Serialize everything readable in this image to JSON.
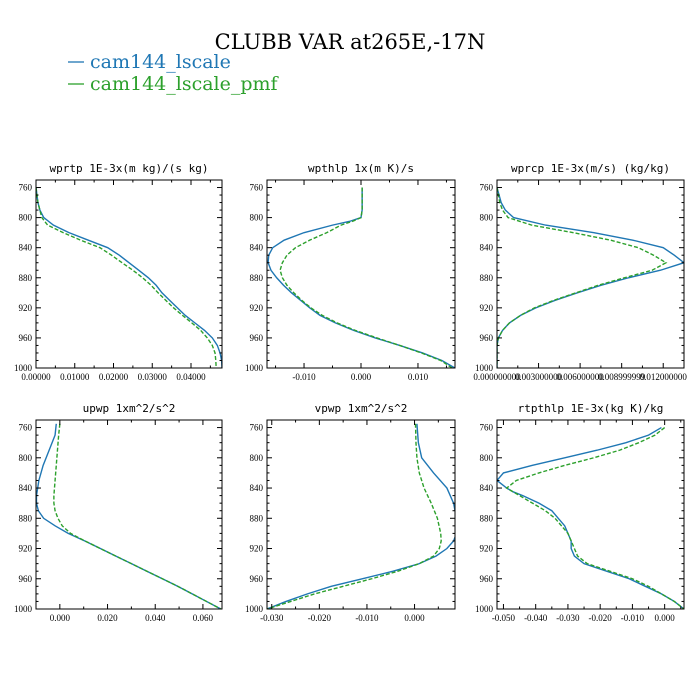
{
  "title": "CLUBB VAR at265E,-17N",
  "legend": [
    {
      "label": "cam144_lscale",
      "color": "#1f77b4",
      "dash": false
    },
    {
      "label": "cam144_lscale_pmf",
      "color": "#2ca02c",
      "dash": true
    }
  ],
  "chart_data": [
    {
      "type": "line",
      "title": "wprtp  1E-3x(m kg)/(s kg)",
      "xlim": [
        0.0,
        0.048
      ],
      "ylim": [
        1000,
        750
      ],
      "xticks": [
        "0.00000",
        "0.01000",
        "0.02000",
        "0.03000",
        "0.04000"
      ],
      "xtick_values": [
        0.0,
        0.01,
        0.02,
        0.03,
        0.04
      ],
      "yticks": [
        760,
        800,
        840,
        880,
        920,
        960,
        1000
      ],
      "series": [
        {
          "name": "cam144_lscale",
          "y": [
            760,
            780,
            790,
            800,
            810,
            820,
            830,
            840,
            850,
            860,
            870,
            880,
            890,
            900,
            910,
            920,
            930,
            940,
            950,
            960,
            970,
            980,
            990,
            1000
          ],
          "x": [
            0.0,
            0.0005,
            0.001,
            0.002,
            0.0045,
            0.0085,
            0.0135,
            0.0185,
            0.0215,
            0.024,
            0.0265,
            0.029,
            0.031,
            0.0325,
            0.0345,
            0.0365,
            0.0385,
            0.041,
            0.0435,
            0.0455,
            0.0468,
            0.0475,
            0.0479,
            0.048
          ]
        },
        {
          "name": "cam144_lscale_pmf",
          "y": [
            760,
            780,
            790,
            800,
            810,
            820,
            830,
            840,
            850,
            860,
            870,
            880,
            890,
            900,
            910,
            920,
            930,
            940,
            950,
            960,
            970,
            980,
            990,
            1000
          ],
          "x": [
            0.0,
            0.0005,
            0.001,
            0.0015,
            0.003,
            0.007,
            0.0115,
            0.0165,
            0.0195,
            0.0222,
            0.025,
            0.0275,
            0.0297,
            0.0315,
            0.0335,
            0.0355,
            0.0378,
            0.0402,
            0.0425,
            0.0442,
            0.0455,
            0.0462,
            0.0464,
            0.0465
          ]
        }
      ]
    },
    {
      "type": "line",
      "title": "wpthlp  1x(m K)/s",
      "xlim": [
        -0.0165,
        0.0165
      ],
      "ylim": [
        1000,
        750
      ],
      "xticks": [
        "-0.010",
        "0.000",
        "0.010"
      ],
      "xtick_values": [
        -0.01,
        0.0,
        0.01
      ],
      "yticks": [
        760,
        800,
        840,
        880,
        920,
        960,
        1000
      ],
      "series": [
        {
          "name": "cam144_lscale",
          "y": [
            760,
            780,
            790,
            800,
            805,
            810,
            820,
            830,
            840,
            850,
            860,
            870,
            880,
            890,
            900,
            910,
            920,
            930,
            940,
            950,
            960,
            970,
            980,
            990,
            1000
          ],
          "x": [
            0.0002,
            0.0002,
            0.0002,
            0.0,
            -0.002,
            -0.005,
            -0.01,
            -0.0135,
            -0.0155,
            -0.0162,
            -0.0163,
            -0.0158,
            -0.0148,
            -0.0136,
            -0.0122,
            -0.0106,
            -0.009,
            -0.0072,
            -0.0045,
            -0.0013,
            0.0025,
            0.0068,
            0.0108,
            0.0142,
            0.0165
          ]
        },
        {
          "name": "cam144_lscale_pmf",
          "y": [
            760,
            780,
            790,
            800,
            805,
            810,
            820,
            830,
            840,
            850,
            860,
            870,
            880,
            890,
            900,
            910,
            920,
            930,
            940,
            950,
            960,
            970,
            980,
            990,
            1000
          ],
          "x": [
            0.0002,
            0.0002,
            0.0002,
            0.0,
            -0.0015,
            -0.0035,
            -0.006,
            -0.009,
            -0.0115,
            -0.013,
            -0.0138,
            -0.0142,
            -0.0138,
            -0.013,
            -0.0118,
            -0.0104,
            -0.0088,
            -0.0068,
            -0.0042,
            -0.001,
            0.0028,
            0.0068,
            0.0106,
            0.014,
            0.016
          ]
        }
      ]
    },
    {
      "type": "line",
      "title": "wprcp  1E-3x(m/s) (kg/kg)",
      "xlim": [
        0.0,
        0.0135
      ],
      "ylim": [
        1000,
        750
      ],
      "xticks": [
        "0.000000000",
        "0.003000000",
        "0.006000000",
        "0.008999999",
        "0.012000000"
      ],
      "xtick_values": [
        0.0,
        0.003,
        0.006,
        0.009,
        0.012
      ],
      "yticks": [
        760,
        800,
        840,
        880,
        920,
        960,
        1000
      ],
      "series": [
        {
          "name": "cam144_lscale",
          "y": [
            760,
            780,
            790,
            800,
            810,
            820,
            830,
            840,
            850,
            860,
            870,
            880,
            890,
            900,
            910,
            920,
            930,
            940,
            950,
            960,
            970,
            980,
            990,
            1000
          ],
          "x": [
            0.0,
            0.0003,
            0.0006,
            0.0012,
            0.0035,
            0.007,
            0.0098,
            0.012,
            0.0128,
            0.0135,
            0.0118,
            0.0095,
            0.0075,
            0.0058,
            0.0042,
            0.0028,
            0.0017,
            0.0009,
            0.0004,
            0.0001,
            0.0,
            0.0,
            0.0,
            0.0
          ]
        },
        {
          "name": "cam144_lscale_pmf",
          "y": [
            760,
            780,
            790,
            800,
            810,
            820,
            830,
            840,
            850,
            860,
            870,
            880,
            890,
            900,
            910,
            920,
            930,
            940,
            950,
            960,
            970,
            980,
            990,
            1000
          ],
          "x": [
            0.0,
            0.0002,
            0.0004,
            0.0008,
            0.0025,
            0.0055,
            0.0082,
            0.0102,
            0.0113,
            0.0122,
            0.0112,
            0.0092,
            0.0073,
            0.0057,
            0.0041,
            0.0027,
            0.0017,
            0.0009,
            0.0004,
            0.0001,
            0.0,
            0.0,
            0.0,
            0.0
          ]
        }
      ]
    },
    {
      "type": "line",
      "title": "upwp  1xm^2/s^2",
      "xlim": [
        -0.01,
        0.068
      ],
      "ylim": [
        1000,
        750
      ],
      "xticks": [
        "0.000",
        "0.020",
        "0.040",
        "0.060"
      ],
      "xtick_values": [
        0.0,
        0.02,
        0.04,
        0.06
      ],
      "yticks": [
        760,
        800,
        840,
        880,
        920,
        960,
        1000
      ],
      "series": [
        {
          "name": "cam144_lscale",
          "y": [
            755,
            770,
            790,
            810,
            830,
            850,
            860,
            870,
            880,
            890,
            900,
            910,
            920,
            930,
            940,
            950,
            960,
            970,
            980,
            990,
            1000
          ],
          "x": [
            -0.0015,
            -0.002,
            -0.0045,
            -0.007,
            -0.0088,
            -0.0098,
            -0.0098,
            -0.009,
            -0.0068,
            -0.002,
            0.0035,
            0.0105,
            0.017,
            0.0235,
            0.03,
            0.0365,
            0.043,
            0.0495,
            0.0555,
            0.0615,
            0.0675
          ]
        },
        {
          "name": "cam144_lscale_pmf",
          "y": [
            755,
            770,
            790,
            810,
            830,
            850,
            860,
            870,
            880,
            890,
            900,
            910,
            920,
            930,
            940,
            950,
            960,
            970,
            980,
            990,
            1000
          ],
          "x": [
            0.0,
            -0.0005,
            -0.001,
            -0.0015,
            -0.002,
            -0.0025,
            -0.0025,
            -0.002,
            -0.0008,
            0.001,
            0.0045,
            0.0105,
            0.017,
            0.0235,
            0.03,
            0.0365,
            0.043,
            0.0495,
            0.0555,
            0.0615,
            0.0675
          ]
        }
      ]
    },
    {
      "type": "line",
      "title": "vpwp  1xm^2/s^2",
      "xlim": [
        -0.031,
        0.0085
      ],
      "ylim": [
        1000,
        750
      ],
      "xticks": [
        "-0.030",
        "-0.020",
        "-0.010",
        "0.000"
      ],
      "xtick_values": [
        -0.03,
        -0.02,
        -0.01,
        0.0
      ],
      "yticks": [
        760,
        800,
        840,
        880,
        920,
        960,
        1000
      ],
      "series": [
        {
          "name": "cam144_lscale",
          "y": [
            755,
            780,
            800,
            820,
            840,
            860,
            880,
            900,
            910,
            920,
            930,
            940,
            950,
            960,
            970,
            980,
            990,
            1000
          ],
          "x": [
            0.0005,
            0.0008,
            0.0015,
            0.004,
            0.0068,
            0.0082,
            0.0088,
            0.0088,
            0.0082,
            0.0068,
            0.0045,
            0.001,
            -0.0045,
            -0.011,
            -0.0175,
            -0.0225,
            -0.027,
            -0.031
          ]
        },
        {
          "name": "cam144_lscale_pmf",
          "y": [
            755,
            780,
            800,
            820,
            840,
            860,
            880,
            900,
            910,
            920,
            930,
            940,
            950,
            960,
            970,
            980,
            990,
            1000
          ],
          "x": [
            0.0002,
            0.0003,
            0.0005,
            0.001,
            0.002,
            0.0035,
            0.0048,
            0.0055,
            0.0056,
            0.0052,
            0.004,
            0.001,
            -0.0035,
            -0.009,
            -0.015,
            -0.021,
            -0.026,
            -0.031
          ]
        }
      ]
    },
    {
      "type": "line",
      "title": "rtpthlp  1E-3x(kg K)/kg",
      "xlim": [
        -0.052,
        0.006
      ],
      "ylim": [
        1000,
        750
      ],
      "xticks": [
        "-0.050",
        "-0.040",
        "-0.030",
        "-0.020",
        "-0.010",
        "0.000"
      ],
      "xtick_values": [
        -0.05,
        -0.04,
        -0.03,
        -0.02,
        -0.01,
        0.0
      ],
      "yticks": [
        760,
        800,
        840,
        880,
        920,
        960,
        1000
      ],
      "series": [
        {
          "name": "cam144_lscale",
          "y": [
            760,
            770,
            780,
            790,
            800,
            810,
            820,
            830,
            840,
            845,
            850,
            860,
            870,
            880,
            890,
            900,
            910,
            920,
            930,
            940,
            950,
            960,
            970,
            980,
            990,
            1000
          ],
          "x": [
            -0.001,
            -0.005,
            -0.012,
            -0.021,
            -0.031,
            -0.041,
            -0.05,
            -0.052,
            -0.049,
            -0.047,
            -0.044,
            -0.039,
            -0.035,
            -0.033,
            -0.031,
            -0.03,
            -0.029,
            -0.029,
            -0.028,
            -0.025,
            -0.018,
            -0.011,
            -0.006,
            -0.001,
            0.003,
            0.006
          ]
        },
        {
          "name": "cam144_lscale_pmf",
          "y": [
            760,
            770,
            780,
            790,
            800,
            810,
            820,
            830,
            840,
            845,
            850,
            860,
            870,
            880,
            890,
            900,
            910,
            920,
            930,
            940,
            950,
            960,
            970,
            980,
            990,
            1000
          ],
          "x": [
            0.0,
            -0.003,
            -0.008,
            -0.014,
            -0.022,
            -0.031,
            -0.039,
            -0.046,
            -0.049,
            -0.047,
            -0.045,
            -0.041,
            -0.037,
            -0.034,
            -0.032,
            -0.03,
            -0.029,
            -0.028,
            -0.027,
            -0.024,
            -0.017,
            -0.01,
            -0.005,
            -0.001,
            0.003,
            0.006
          ]
        }
      ]
    }
  ]
}
